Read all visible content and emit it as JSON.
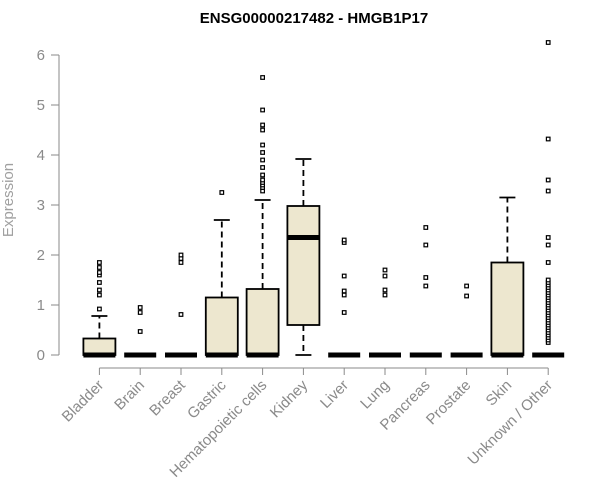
{
  "chart_data": {
    "type": "box",
    "title": "ENSG00000217482 - HMGB1P17",
    "xlabel": "",
    "ylabel": "Expression",
    "ylim": [
      0,
      6.3
    ],
    "yticks": [
      0,
      1,
      2,
      3,
      4,
      5,
      6
    ],
    "ytick_labels": [
      "0",
      "1",
      "2",
      "3",
      "4",
      "5",
      "6"
    ],
    "grid": false,
    "legend": "none",
    "colors": {
      "box_fill": "#ede7cf",
      "box_stroke": "#000000",
      "axis": "#8a8a8a",
      "tick_text": "#8a8a8a"
    },
    "categories": [
      "Bladder",
      "Brain",
      "Breast",
      "Gastric",
      "Hematopoietic cells",
      "Kidney",
      "Liver",
      "Lung",
      "Pancreas",
      "Prostate",
      "Skin",
      "Unknown / Other"
    ],
    "boxes": [
      {
        "q1": 0,
        "median": 0,
        "q3": 0.33,
        "whisker_low": 0,
        "whisker_high": 0.78,
        "outliers": [
          0.92,
          1.2,
          1.3,
          1.45,
          1.6,
          1.65,
          1.75,
          1.85
        ]
      },
      {
        "q1": 0,
        "median": 0,
        "q3": 0,
        "whisker_low": 0,
        "whisker_high": 0,
        "outliers": [
          0.47,
          0.85,
          0.95
        ]
      },
      {
        "q1": 0,
        "median": 0,
        "q3": 0,
        "whisker_low": 0,
        "whisker_high": 0,
        "outliers": [
          0.81,
          1.85,
          1.93,
          2.0
        ]
      },
      {
        "q1": 0,
        "median": 0,
        "q3": 1.15,
        "whisker_low": 0,
        "whisker_high": 2.7,
        "outliers": [
          3.25
        ]
      },
      {
        "q1": 0,
        "median": 0,
        "q3": 1.32,
        "whisker_low": 0,
        "whisker_high": 3.1,
        "outliers": [
          3.28,
          3.35,
          3.4,
          3.45,
          3.5,
          3.6,
          3.75,
          3.9,
          4.05,
          4.2,
          4.5,
          4.6,
          4.9,
          5.55
        ]
      },
      {
        "q1": 0.6,
        "median": 2.35,
        "q3": 2.98,
        "whisker_low": 0,
        "whisker_high": 3.92,
        "outliers": []
      },
      {
        "q1": 0,
        "median": 0,
        "q3": 0,
        "whisker_low": 0,
        "whisker_high": 0,
        "outliers": [
          0.85,
          1.2,
          1.28,
          1.58,
          2.25,
          2.3
        ]
      },
      {
        "q1": 0,
        "median": 0,
        "q3": 0,
        "whisker_low": 0,
        "whisker_high": 0,
        "outliers": [
          1.2,
          1.3,
          1.58,
          1.7
        ]
      },
      {
        "q1": 0,
        "median": 0,
        "q3": 0,
        "whisker_low": 0,
        "whisker_high": 0,
        "outliers": [
          1.38,
          1.55,
          2.2,
          2.55
        ]
      },
      {
        "q1": 0,
        "median": 0,
        "q3": 0,
        "whisker_low": 0,
        "whisker_high": 0,
        "outliers": [
          1.18,
          1.38
        ]
      },
      {
        "q1": 0,
        "median": 0,
        "q3": 1.85,
        "whisker_low": 0,
        "whisker_high": 3.15,
        "outliers": []
      },
      {
        "q1": 0,
        "median": 0,
        "q3": 0,
        "whisker_low": 0,
        "whisker_high": 0,
        "outliers": [
          0.25,
          0.3,
          0.35,
          0.4,
          0.45,
          0.5,
          0.55,
          0.6,
          0.65,
          0.7,
          0.75,
          0.8,
          0.85,
          0.9,
          0.95,
          1.0,
          1.05,
          1.1,
          1.15,
          1.2,
          1.25,
          1.3,
          1.35,
          1.4,
          1.45,
          1.5,
          1.85,
          2.2,
          2.35,
          3.28,
          3.5,
          4.32,
          6.25
        ]
      }
    ]
  }
}
